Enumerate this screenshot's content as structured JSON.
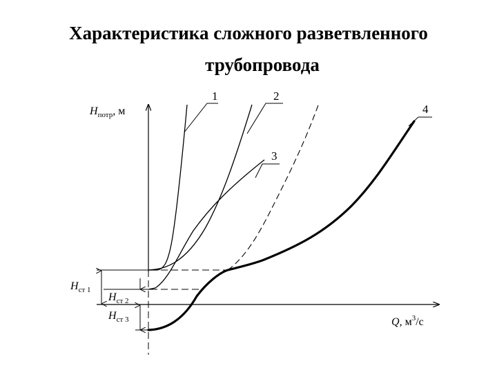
{
  "title_line1": "Характеристика сложного разветвленного",
  "title_line2": "трубопровода",
  "y_axis": {
    "symbol": "H",
    "subscript": "потр",
    "unit": ", м"
  },
  "x_axis": {
    "symbol": "Q",
    "unit_prefix": ", м",
    "unit_sup": "3",
    "unit_suffix": "/с"
  },
  "curves": [
    {
      "label": "1",
      "style": "thin"
    },
    {
      "label": "2",
      "style": "thin"
    },
    {
      "label": "3",
      "style": "thin"
    },
    {
      "label": "4",
      "style": "bold"
    }
  ],
  "dashed_curve": {
    "style": "dashed"
  },
  "heights": [
    {
      "symbol": "H",
      "subscript": "ст 1"
    },
    {
      "symbol": "H",
      "subscript": "ст 2"
    },
    {
      "symbol": "H",
      "subscript": "ст 3"
    }
  ]
}
